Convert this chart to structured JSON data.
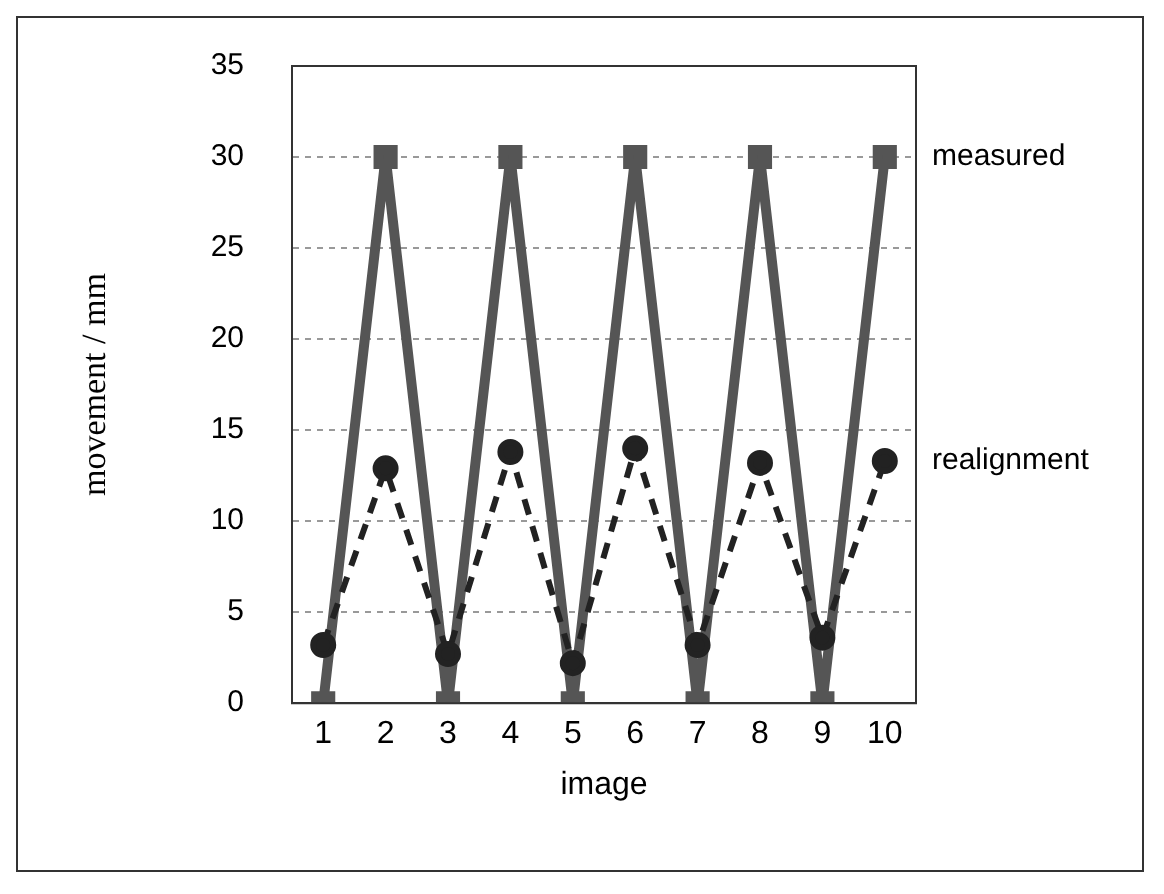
{
  "chart_data": {
    "type": "line",
    "xlabel": "image",
    "ylabel": "movement / mm",
    "categories": [
      "1",
      "2",
      "3",
      "4",
      "5",
      "6",
      "7",
      "8",
      "9",
      "10"
    ],
    "series": [
      {
        "name": "measured",
        "color": "#555555",
        "marker": "square",
        "line_style": "solid",
        "values": [
          0,
          30,
          0,
          30,
          0,
          30,
          0,
          30,
          0,
          30
        ]
      },
      {
        "name": "realignment",
        "color": "#222222",
        "marker": "circle",
        "line_style": "dashed",
        "values": [
          3.2,
          12.9,
          2.7,
          13.8,
          2.2,
          14,
          3.2,
          13.2,
          3.6,
          13.3
        ]
      }
    ],
    "ylim": [
      0,
      35
    ],
    "yticks": [
      0,
      5,
      10,
      15,
      20,
      25,
      30,
      35
    ],
    "grid": "y",
    "legend": false
  }
}
